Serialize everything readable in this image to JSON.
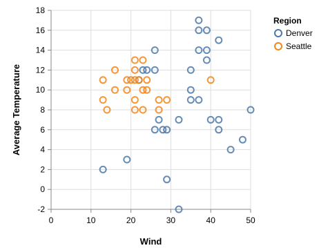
{
  "chart_data": {
    "type": "scatter",
    "title": "",
    "xlabel": "Wind",
    "ylabel": "Average Temperature",
    "xlim": [
      0,
      50
    ],
    "ylim": [
      -2,
      18
    ],
    "x_ticks": [
      0,
      10,
      20,
      30,
      40,
      50
    ],
    "y_ticks": [
      -2,
      0,
      2,
      4,
      6,
      8,
      10,
      12,
      14,
      16,
      18
    ],
    "grid": true,
    "legend": {
      "title": "Region",
      "placement": "right"
    },
    "series": [
      {
        "name": "Denver",
        "color": "#4c78a8",
        "marker": "open-circle",
        "points": [
          {
            "x": 13,
            "y": 2
          },
          {
            "x": 19,
            "y": 3
          },
          {
            "x": 22,
            "y": 11
          },
          {
            "x": 23,
            "y": 12
          },
          {
            "x": 24,
            "y": 12
          },
          {
            "x": 26,
            "y": 12
          },
          {
            "x": 26,
            "y": 14
          },
          {
            "x": 26,
            "y": 6
          },
          {
            "x": 27,
            "y": 7
          },
          {
            "x": 28,
            "y": 6
          },
          {
            "x": 29,
            "y": 6
          },
          {
            "x": 29,
            "y": 1
          },
          {
            "x": 32,
            "y": 7
          },
          {
            "x": 32,
            "y": -2
          },
          {
            "x": 35,
            "y": 12
          },
          {
            "x": 35,
            "y": 10
          },
          {
            "x": 35,
            "y": 9
          },
          {
            "x": 37,
            "y": 9
          },
          {
            "x": 37,
            "y": 14
          },
          {
            "x": 37,
            "y": 16
          },
          {
            "x": 37,
            "y": 17
          },
          {
            "x": 39,
            "y": 16
          },
          {
            "x": 39,
            "y": 14
          },
          {
            "x": 39,
            "y": 13
          },
          {
            "x": 40,
            "y": 7
          },
          {
            "x": 42,
            "y": 15
          },
          {
            "x": 42,
            "y": 7
          },
          {
            "x": 42,
            "y": 6
          },
          {
            "x": 45,
            "y": 4
          },
          {
            "x": 48,
            "y": 5
          },
          {
            "x": 50,
            "y": 8
          }
        ]
      },
      {
        "name": "Seattle",
        "color": "#f58518",
        "marker": "open-circle",
        "points": [
          {
            "x": 13,
            "y": 11
          },
          {
            "x": 13,
            "y": 9
          },
          {
            "x": 14,
            "y": 8
          },
          {
            "x": 16,
            "y": 12
          },
          {
            "x": 16,
            "y": 10
          },
          {
            "x": 19,
            "y": 11
          },
          {
            "x": 19,
            "y": 10
          },
          {
            "x": 20,
            "y": 11
          },
          {
            "x": 21,
            "y": 13
          },
          {
            "x": 21,
            "y": 12
          },
          {
            "x": 21,
            "y": 11
          },
          {
            "x": 21,
            "y": 9
          },
          {
            "x": 21,
            "y": 8
          },
          {
            "x": 22,
            "y": 11
          },
          {
            "x": 23,
            "y": 13
          },
          {
            "x": 23,
            "y": 10
          },
          {
            "x": 23,
            "y": 8
          },
          {
            "x": 24,
            "y": 11
          },
          {
            "x": 24,
            "y": 10
          },
          {
            "x": 27,
            "y": 9
          },
          {
            "x": 27,
            "y": 8
          },
          {
            "x": 29,
            "y": 9
          },
          {
            "x": 40,
            "y": 11
          }
        ]
      }
    ]
  }
}
